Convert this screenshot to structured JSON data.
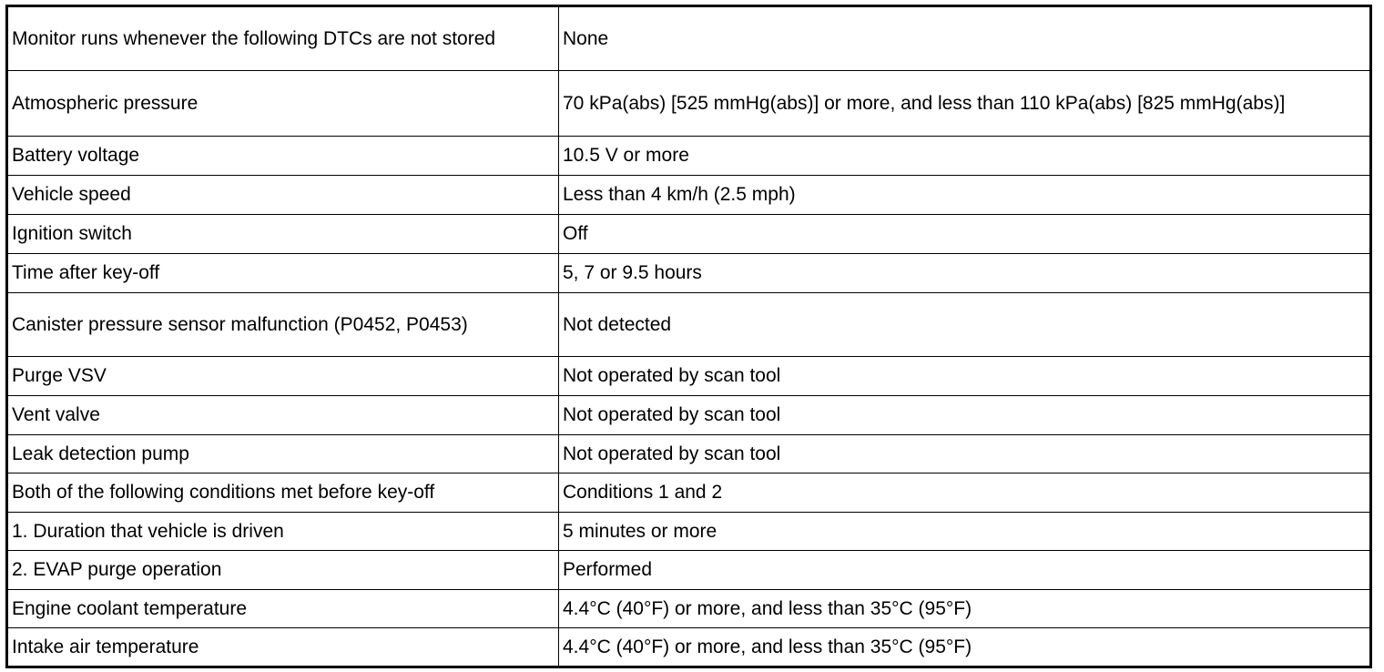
{
  "rows": [
    {
      "condition": "Monitor runs whenever the following DTCs are not stored",
      "value": "None"
    },
    {
      "condition": "Atmospheric pressure",
      "value": "70 kPa(abs) [525 mmHg(abs)] or more, and less than 110 kPa(abs) [825 mmHg(abs)]"
    },
    {
      "condition": "Battery voltage",
      "value": "10.5 V or more"
    },
    {
      "condition": "Vehicle speed",
      "value": "Less than 4 km/h (2.5 mph)"
    },
    {
      "condition": "Ignition switch",
      "value": "Off"
    },
    {
      "condition": "Time after key-off",
      "value": "5, 7 or 9.5 hours"
    },
    {
      "condition": "Canister pressure sensor malfunction (P0452, P0453)",
      "value": "Not detected"
    },
    {
      "condition": "Purge VSV",
      "value": "Not operated by scan tool"
    },
    {
      "condition": "Vent valve",
      "value": "Not operated by scan tool"
    },
    {
      "condition": "Leak detection pump",
      "value": "Not operated by scan tool"
    },
    {
      "condition": "Both of the following conditions met before key-off",
      "value": "Conditions 1 and 2"
    },
    {
      "condition": "1. Duration that vehicle is driven",
      "value": "5 minutes or more"
    },
    {
      "condition": "2. EVAP purge operation",
      "value": "Performed"
    },
    {
      "condition": "Engine coolant temperature",
      "value": "4.4°C (40°F) or more, and less than 35°C (95°F)"
    },
    {
      "condition": "Intake air temperature",
      "value": "4.4°C (40°F) or more, and less than 35°C (95°F)"
    }
  ]
}
